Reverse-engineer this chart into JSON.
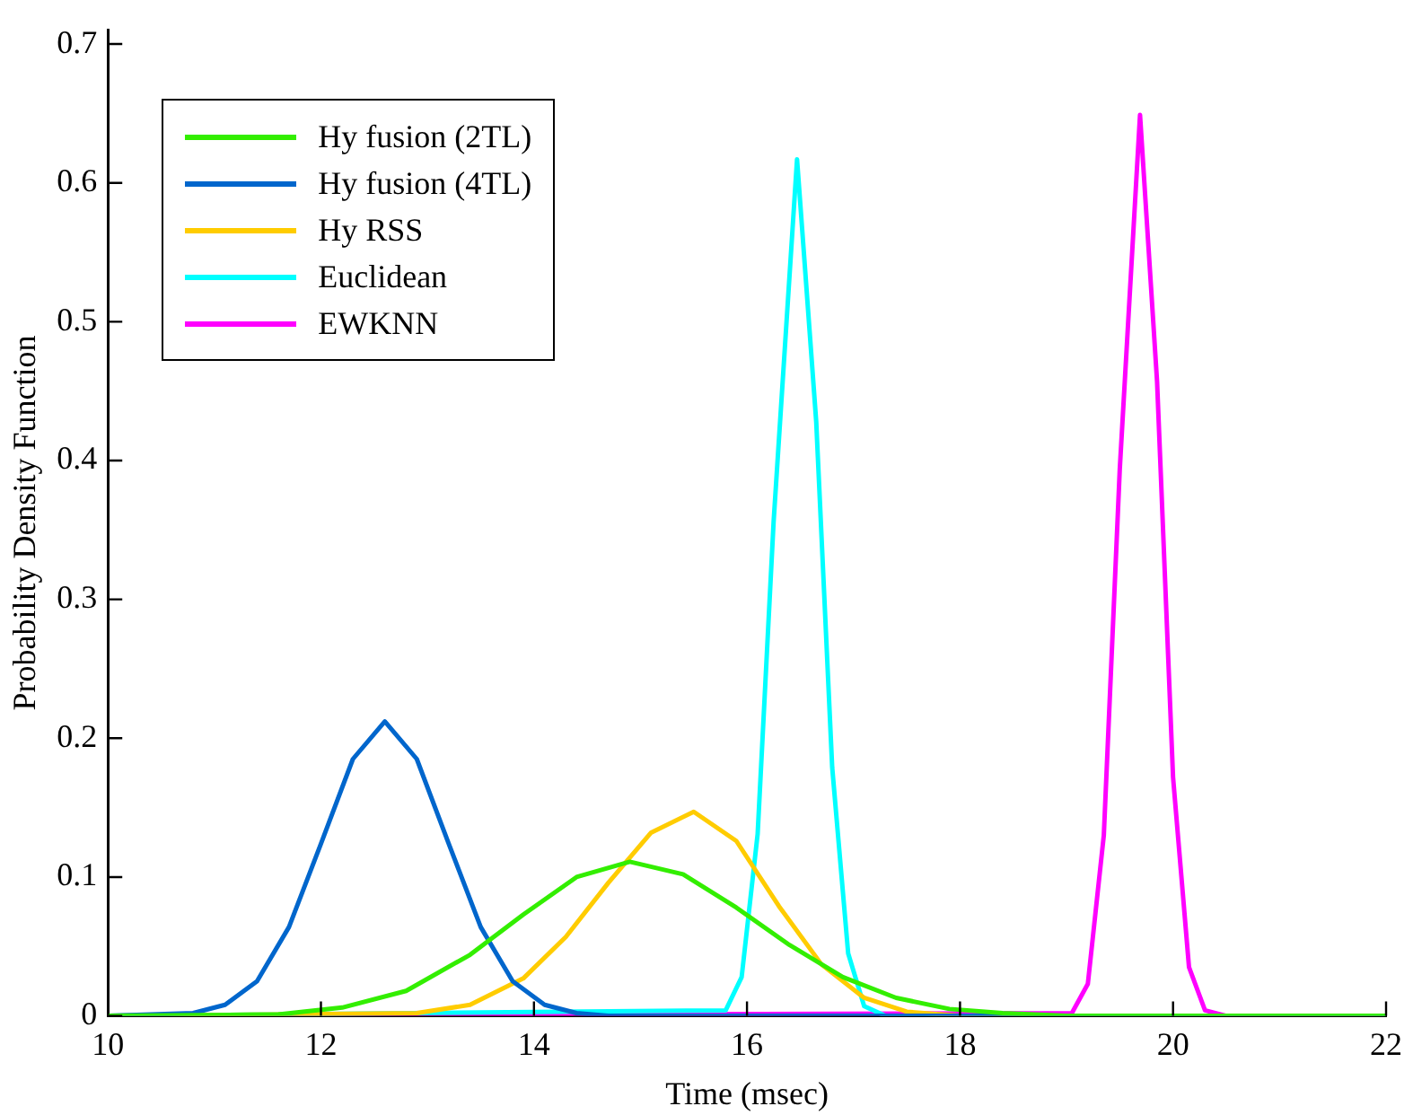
{
  "chart_data": {
    "type": "line",
    "xlabel": "Time (msec)",
    "ylabel": "Probability Density Function",
    "xlim": [
      10,
      22
    ],
    "xticks": [
      10,
      12,
      14,
      16,
      18,
      20,
      22
    ],
    "ylim": [
      0,
      0.71
    ],
    "yticks": [
      0,
      0.1,
      0.2,
      0.3,
      0.4,
      0.5,
      0.6,
      0.7
    ],
    "grid": false,
    "legend": "top left",
    "marker": "none",
    "line_style": "solid",
    "series": [
      {
        "name": "Hy fusion (2TL)",
        "color": "#33ee00",
        "x": [
          10,
          11.6,
          12.2,
          12.8,
          13.4,
          13.9,
          14.4,
          14.9,
          15.4,
          15.9,
          16.4,
          16.9,
          17.4,
          17.9,
          18.4,
          19,
          22
        ],
        "values": [
          0,
          0.001,
          0.006,
          0.018,
          0.044,
          0.073,
          0.1,
          0.111,
          0.102,
          0.078,
          0.051,
          0.028,
          0.013,
          0.005,
          0.002,
          0,
          0
        ]
      },
      {
        "name": "Hy fusion (4TL)",
        "color": "#0066cc",
        "x": [
          10,
          10.8,
          11.1,
          11.4,
          11.7,
          12,
          12.3,
          12.6,
          12.9,
          13.2,
          13.5,
          13.8,
          14.1,
          14.4,
          14.7,
          22
        ],
        "values": [
          0,
          0.002,
          0.008,
          0.025,
          0.064,
          0.124,
          0.185,
          0.212,
          0.185,
          0.124,
          0.064,
          0.025,
          0.008,
          0.002,
          0,
          0
        ]
      },
      {
        "name": "Hy RSS",
        "color": "#ffcc00",
        "x": [
          10,
          12.9,
          13.4,
          13.9,
          14.3,
          14.7,
          15.1,
          15.5,
          15.9,
          16.3,
          16.7,
          17.1,
          17.5,
          18,
          22
        ],
        "values": [
          0,
          0.002,
          0.008,
          0.027,
          0.057,
          0.096,
          0.132,
          0.147,
          0.126,
          0.079,
          0.037,
          0.013,
          0.003,
          0,
          0
        ]
      },
      {
        "name": "Euclidean",
        "color": "#00ffff",
        "x": [
          10,
          15.8,
          15.95,
          16.1,
          16.25,
          16.47,
          16.65,
          16.8,
          16.95,
          17.1,
          17.3,
          22
        ],
        "values": [
          0,
          0.004,
          0.028,
          0.131,
          0.356,
          0.617,
          0.428,
          0.179,
          0.045,
          0.007,
          0,
          0
        ]
      },
      {
        "name": "EWKNN",
        "color": "#ff00ff",
        "x": [
          10,
          19.05,
          19.2,
          19.35,
          19.5,
          19.69,
          19.85,
          20,
          20.15,
          20.3,
          20.5,
          22
        ],
        "values": [
          0,
          0.002,
          0.023,
          0.13,
          0.394,
          0.649,
          0.457,
          0.172,
          0.035,
          0.004,
          0,
          0
        ]
      }
    ]
  }
}
